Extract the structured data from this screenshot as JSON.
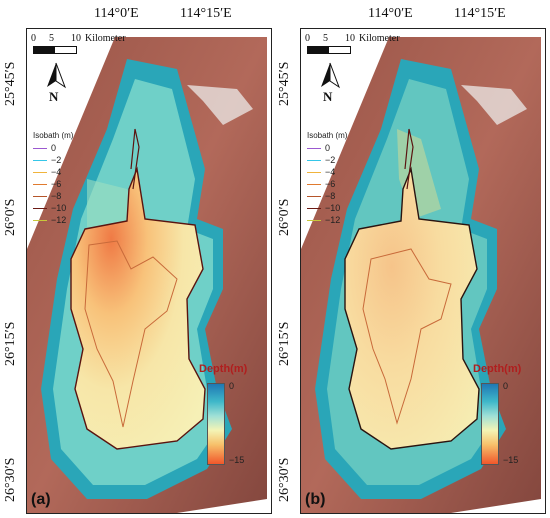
{
  "panels": [
    {
      "label": "(a)",
      "lon_ticks": [
        "114°0′E",
        "114°15′E"
      ],
      "lat_ticks": [
        "25°45′S",
        "26°0′S",
        "26°15′S",
        "26°30′S"
      ],
      "scale": {
        "ticks": [
          "0",
          "5",
          "10"
        ],
        "unit": "Kilometer"
      },
      "north_label": "N",
      "legend": {
        "title": "Isobath (m)",
        "items": [
          {
            "label": "0",
            "color": "#9b59d0"
          },
          {
            "label": "−2",
            "color": "#35c6e8"
          },
          {
            "label": "−4",
            "color": "#f0b43c"
          },
          {
            "label": "−6",
            "color": "#e07a2e"
          },
          {
            "label": "−8",
            "color": "#b5552a"
          },
          {
            "label": "−10",
            "color": "#6b1a14"
          },
          {
            "label": "−12",
            "color": "#c8c83a"
          }
        ]
      },
      "depth": {
        "title": "Depth(m)",
        "max": "0",
        "min": "−15"
      }
    },
    {
      "label": "(b)",
      "lon_ticks": [
        "114°0′E",
        "114°15′E"
      ],
      "lat_ticks": [
        "25°45′S",
        "26°0′S",
        "26°15′S",
        "26°30′S"
      ],
      "scale": {
        "ticks": [
          "0",
          "5",
          "10"
        ],
        "unit": "Kilometer"
      },
      "north_label": "N",
      "legend": {
        "title": "Isobath (m)",
        "items": [
          {
            "label": "0",
            "color": "#9b59d0"
          },
          {
            "label": "−2",
            "color": "#35c6e8"
          },
          {
            "label": "−4",
            "color": "#f0b43c"
          },
          {
            "label": "−6",
            "color": "#e07a2e"
          },
          {
            "label": "−8",
            "color": "#b5552a"
          },
          {
            "label": "−10",
            "color": "#6b1a14"
          },
          {
            "label": "−12",
            "color": "#c8c83a"
          }
        ]
      },
      "depth": {
        "title": "Depth(m)",
        "max": "0",
        "min": "−15"
      }
    }
  ]
}
